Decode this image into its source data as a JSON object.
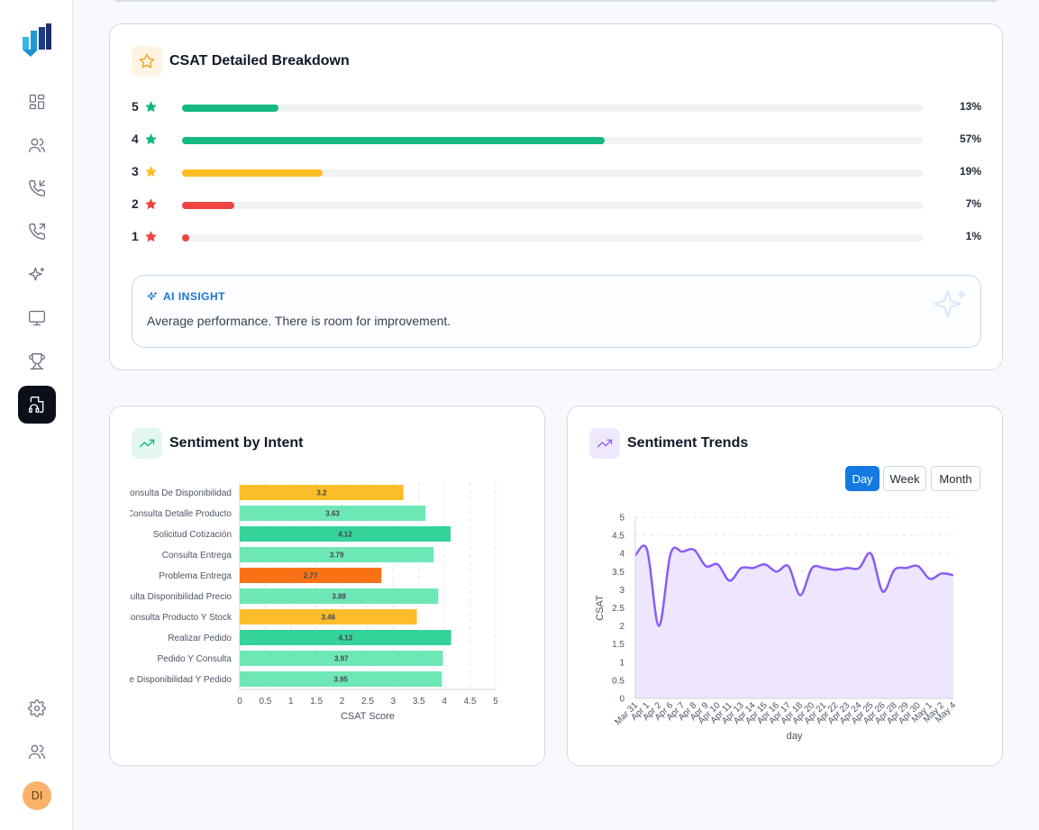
{
  "sidebar": {
    "items": [
      {
        "name": "dashboard-icon"
      },
      {
        "name": "users-icon"
      },
      {
        "name": "incoming-call-icon"
      },
      {
        "name": "outgoing-call-icon"
      },
      {
        "name": "sparkles-icon"
      },
      {
        "name": "monitor-icon"
      },
      {
        "name": "trophy-icon"
      },
      {
        "name": "headset-document-icon",
        "active": true
      }
    ],
    "bottom": [
      {
        "name": "gear-icon"
      },
      {
        "name": "team-icon"
      }
    ],
    "avatar_initials": "DI"
  },
  "csat": {
    "title": "CSAT Detailed Breakdown",
    "rows": [
      {
        "rating": "5",
        "percent": 13,
        "percent_label": "13%",
        "color": "#14b881"
      },
      {
        "rating": "4",
        "percent": 57,
        "percent_label": "57%",
        "color": "#14b881"
      },
      {
        "rating": "3",
        "percent": 19,
        "percent_label": "19%",
        "color": "#fbbf24"
      },
      {
        "rating": "2",
        "percent": 7,
        "percent_label": "7%",
        "color": "#ef4444"
      },
      {
        "rating": "1",
        "percent": 1,
        "percent_label": "1%",
        "color": "#ef4444"
      }
    ],
    "insight": {
      "title": "AI INSIGHT",
      "text": "Average performance. There is room for improvement."
    }
  },
  "intent": {
    "title": "Sentiment by Intent"
  },
  "trends": {
    "title": "Sentiment Trends",
    "toggles": {
      "day": "Day",
      "week": "Week",
      "month": "Month",
      "active": "Day"
    }
  },
  "chart_data": [
    {
      "type": "bar",
      "orientation": "horizontal",
      "categories": [
        "Consulta De Disponibilidad",
        "Consulta Detalle Producto",
        "Solicitud Cotización",
        "Consulta Entrega",
        "Problema Entrega",
        "Consulta Disponibilidad Precio",
        "Consulta Producto Y Stock",
        "Realizar Pedido",
        "Pedido Y Consulta",
        "Consulta De Disponibilidad Y Pedido"
      ],
      "values": [
        3.2,
        3.63,
        4.12,
        3.79,
        2.77,
        3.88,
        3.46,
        4.13,
        3.97,
        3.95
      ],
      "value_labels": [
        "3.2",
        "3.63",
        "4.12",
        "3.79",
        "2.77",
        "3.88",
        "3.46",
        "4.13",
        "3.97",
        "3.95"
      ],
      "colors": [
        "#fbbd2a",
        "#6ee7b7",
        "#34d399",
        "#6ee7b7",
        "#f97316",
        "#6ee7b7",
        "#fbbd2a",
        "#34d399",
        "#6ee7b7",
        "#6ee7b7"
      ],
      "xlabel": "CSAT Score",
      "xlim": [
        0,
        5
      ],
      "xticks": [
        "0",
        "0.5",
        "1",
        "1.5",
        "2",
        "2.5",
        "3",
        "3.5",
        "4",
        "4.5",
        "5"
      ],
      "grid": "vertical dashed"
    },
    {
      "type": "area",
      "x": [
        "Mar 31",
        "Apr 1",
        "Apr 2",
        "Apr 6",
        "Apr 7",
        "Apr 8",
        "Apr 9",
        "Apr 10",
        "Apr 11",
        "Apr 13",
        "Apr 14",
        "Apr 15",
        "Apr 16",
        "Apr 17",
        "Apr 18",
        "Apr 20",
        "Apr 21",
        "Apr 22",
        "Apr 23",
        "Apr 24",
        "Apr 25",
        "Apr 26",
        "Apr 28",
        "Apr 29",
        "Apr 30",
        "May 1",
        "May 2",
        "May 4"
      ],
      "values": [
        3.95,
        4.1,
        2.0,
        4.0,
        4.05,
        4.1,
        3.65,
        3.7,
        3.25,
        3.6,
        3.6,
        3.7,
        3.5,
        3.65,
        2.85,
        3.6,
        3.6,
        3.55,
        3.6,
        3.6,
        4.0,
        2.95,
        3.55,
        3.6,
        3.65,
        3.3,
        3.45,
        3.4
      ],
      "color": "#8b5cf6",
      "fill": "#ede6fd",
      "xlabel": "day",
      "ylabel": "CSAT",
      "ylim": [
        0,
        5
      ],
      "yticks": [
        "0",
        "0.5",
        "1",
        "1.5",
        "2",
        "2.5",
        "3",
        "3.5",
        "4",
        "4.5",
        "5"
      ],
      "grid": "horizontal dashed"
    }
  ]
}
